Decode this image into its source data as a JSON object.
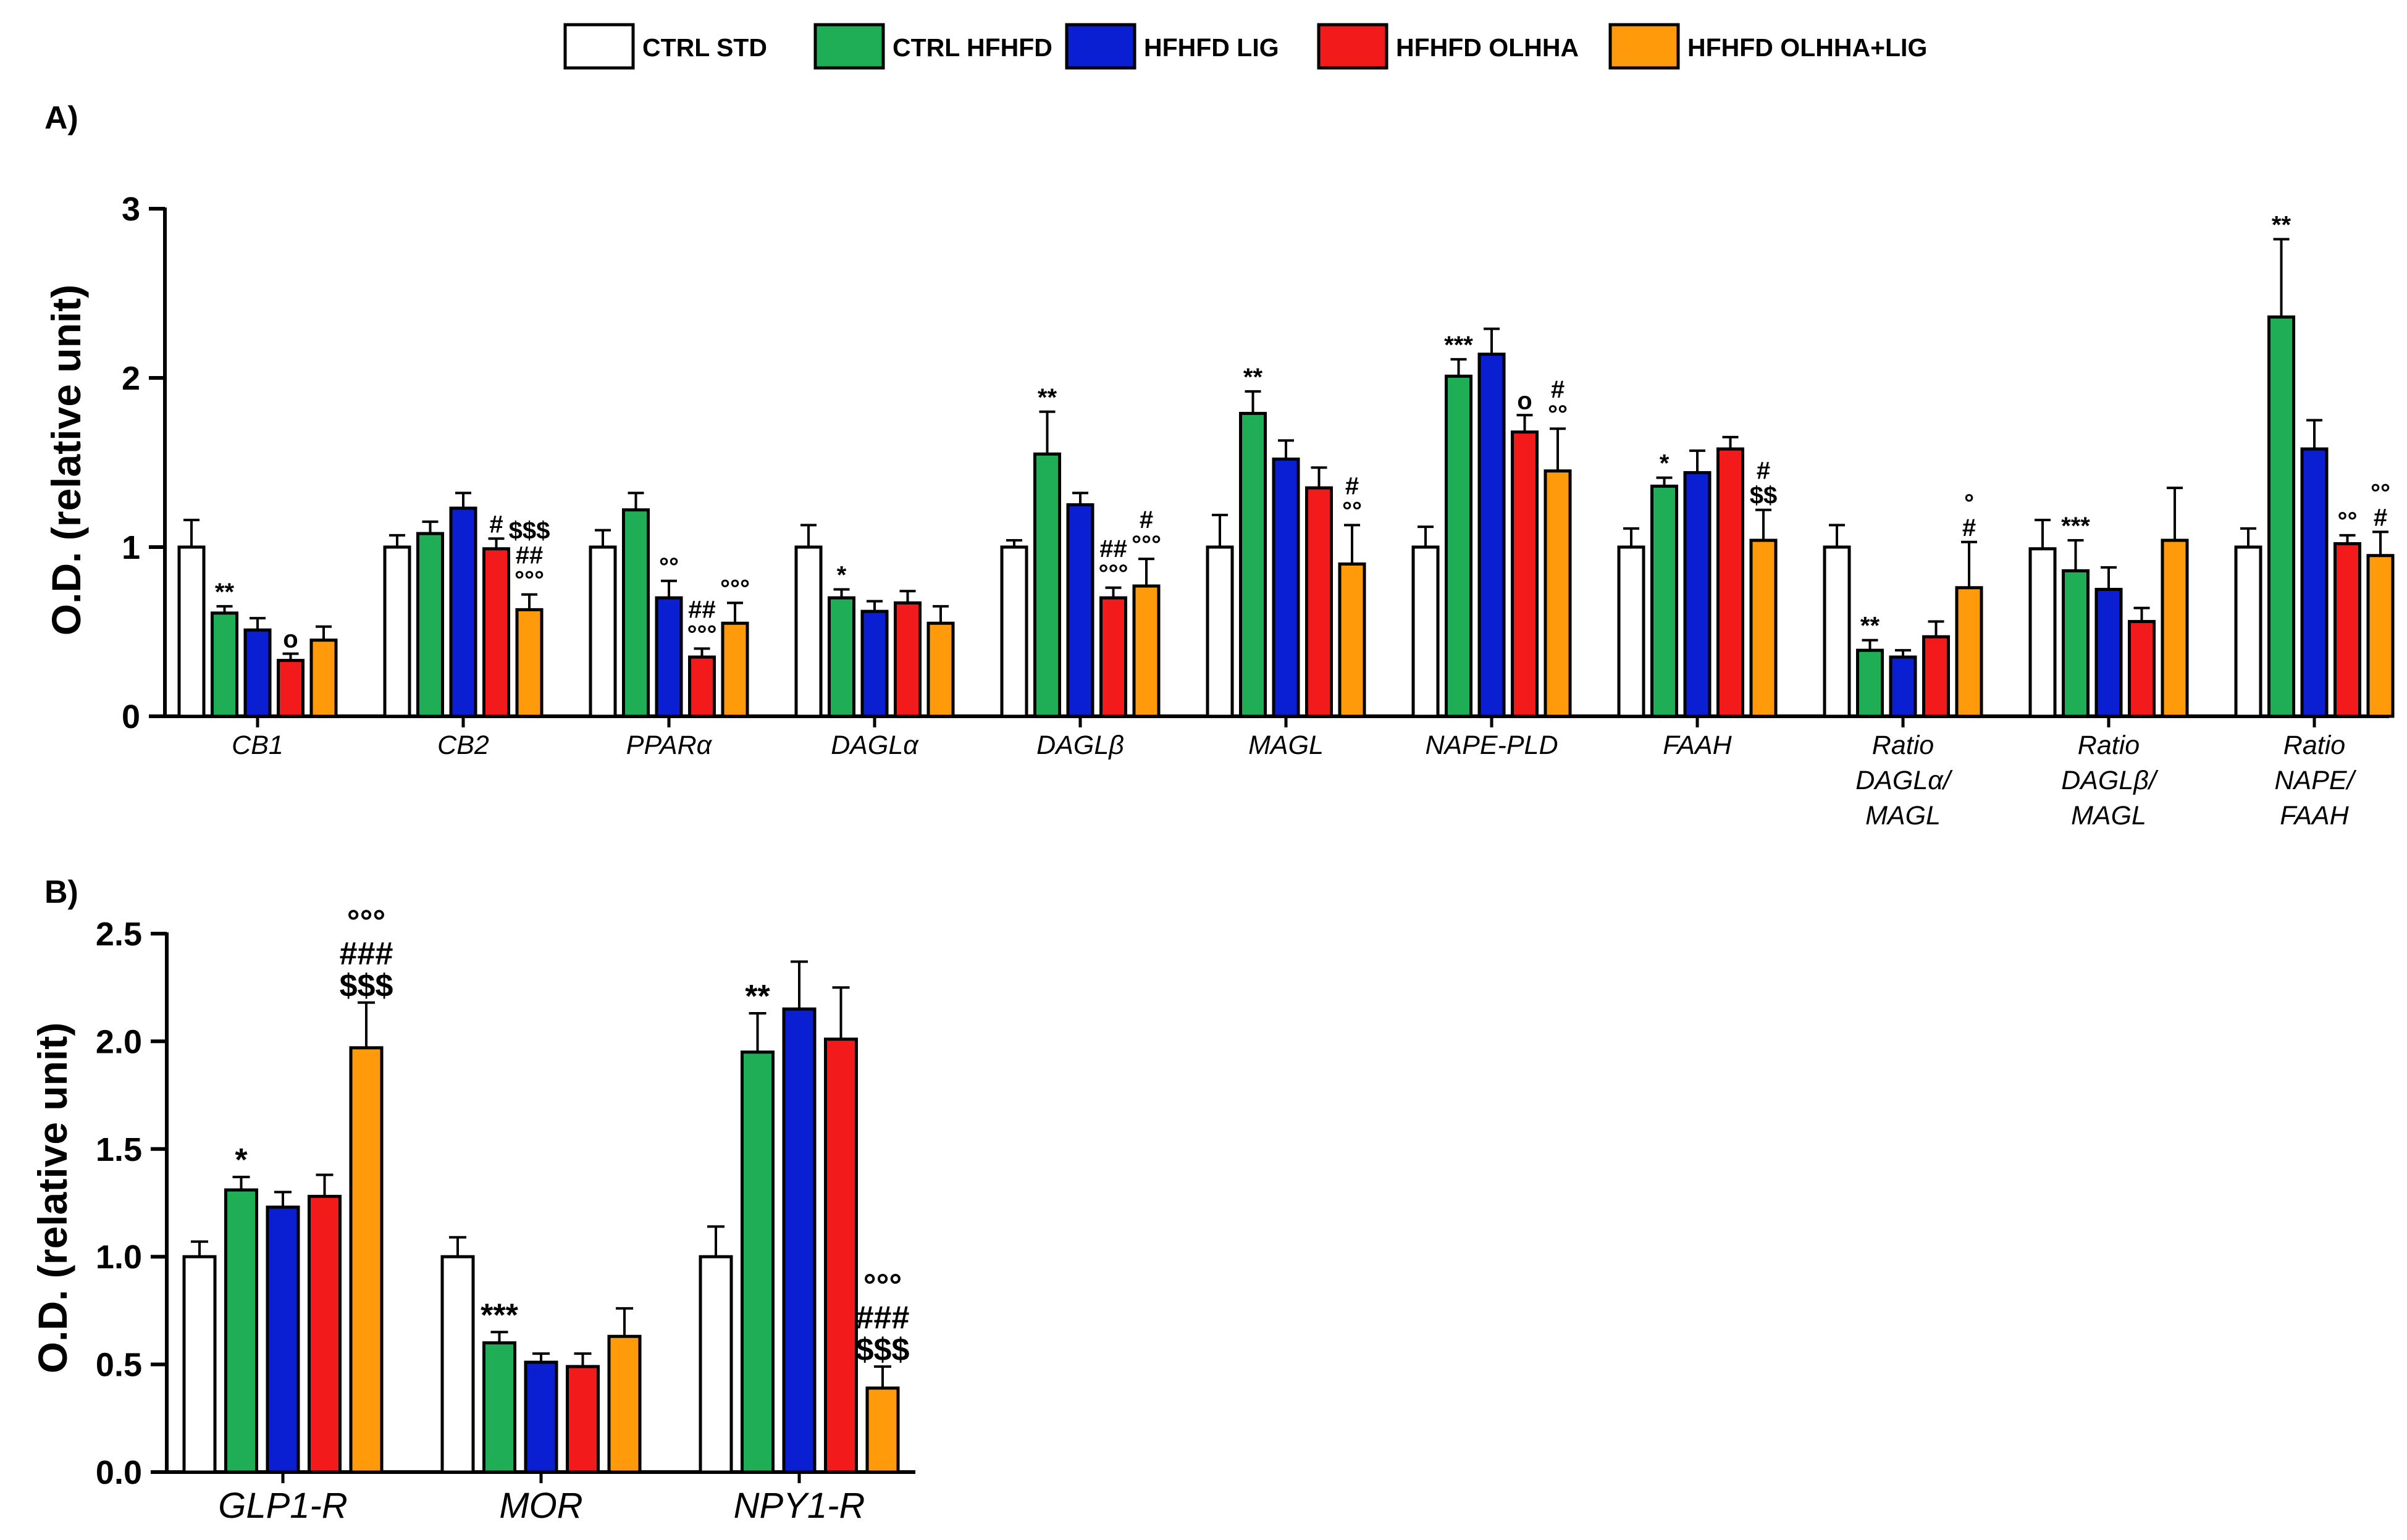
{
  "legend": [
    {
      "label": "CTRL STD",
      "color": "#ffffff"
    },
    {
      "label": "CTRL HFHFD",
      "color": "#1fad56"
    },
    {
      "label": "HFHFD LIG",
      "color": "#0a1fd1"
    },
    {
      "label": "HFHFD OLHHA",
      "color": "#f21a1a"
    },
    {
      "label": "HFHFD OLHHA+LIG",
      "color": "#ff9a0a"
    }
  ],
  "chart_data": [
    {
      "type": "bar",
      "panel_label": "A)",
      "ylabel": "O.D. (relative unit)",
      "ylim": [
        0,
        3
      ],
      "yticks": [
        "0",
        "1",
        "2",
        "3"
      ],
      "categories": [
        [
          "CB1"
        ],
        [
          "CB2"
        ],
        [
          "PPARα"
        ],
        [
          "DAGLα"
        ],
        [
          "DAGLβ"
        ],
        [
          "MAGL"
        ],
        [
          "NAPE-PLD"
        ],
        [
          "FAAH"
        ],
        [
          "Ratio",
          "DAGLα/",
          "MAGL"
        ],
        [
          "Ratio",
          "DAGLβ/",
          "MAGL"
        ],
        [
          "Ratio",
          "NAPE/",
          "FAAH"
        ]
      ],
      "series": [
        {
          "name": "CTRL STD",
          "values": [
            1.0,
            1.0,
            1.0,
            1.0,
            1.0,
            1.0,
            1.0,
            1.0,
            1.0,
            0.99,
            1.0
          ],
          "errors": [
            0.16,
            0.07,
            0.1,
            0.13,
            0.04,
            0.19,
            0.12,
            0.11,
            0.13,
            0.17,
            0.11
          ]
        },
        {
          "name": "CTRL HFHFD",
          "values": [
            0.61,
            1.08,
            1.22,
            0.7,
            1.55,
            1.79,
            2.01,
            1.36,
            0.39,
            0.86,
            2.36
          ],
          "errors": [
            0.04,
            0.07,
            0.1,
            0.05,
            0.25,
            0.13,
            0.1,
            0.05,
            0.06,
            0.18,
            0.46
          ]
        },
        {
          "name": "HFHFD LIG",
          "values": [
            0.51,
            1.23,
            0.7,
            0.62,
            1.25,
            1.52,
            2.14,
            1.44,
            0.35,
            0.75,
            1.58
          ]
        },
        {
          "name": "HFHFD OLHHA",
          "values": [
            0.33,
            0.99,
            0.35,
            0.67,
            0.7,
            1.35,
            1.68,
            1.58,
            0.47,
            0.56,
            1.02
          ]
        },
        {
          "name": "HFHFD OLHHA+LIG",
          "values": [
            0.45,
            0.63,
            0.55,
            0.55,
            0.77,
            0.9,
            1.45,
            1.04,
            0.76,
            1.04,
            0.95
          ]
        }
      ],
      "errors_lig": [
        0.07,
        0.09,
        0.1,
        0.06,
        0.07,
        0.11,
        0.15,
        0.13,
        0.04,
        0.13,
        0.17
      ],
      "errors_olhha": [
        0.04,
        0.06,
        0.05,
        0.07,
        0.06,
        0.12,
        0.1,
        0.07,
        0.09,
        0.08,
        0.05
      ],
      "errors_combo": [
        0.08,
        0.09,
        0.12,
        0.1,
        0.16,
        0.23,
        0.25,
        0.18,
        0.27,
        0.31,
        0.14
      ],
      "annotations": [
        {
          "cat": 0,
          "series": 1,
          "lines": [
            "**"
          ]
        },
        {
          "cat": 0,
          "series": 3,
          "lines": [
            "o"
          ]
        },
        {
          "cat": 1,
          "series": 3,
          "lines": [
            "#"
          ]
        },
        {
          "cat": 1,
          "series": 4,
          "lines": [
            "$$$",
            "##",
            "°°°"
          ]
        },
        {
          "cat": 2,
          "series": 2,
          "lines": [
            "°°"
          ]
        },
        {
          "cat": 2,
          "series": 3,
          "lines": [
            "##",
            "°°°"
          ]
        },
        {
          "cat": 2,
          "series": 4,
          "lines": [
            "°°°"
          ]
        },
        {
          "cat": 3,
          "series": 1,
          "lines": [
            "*"
          ]
        },
        {
          "cat": 4,
          "series": 1,
          "lines": [
            "**"
          ]
        },
        {
          "cat": 4,
          "series": 3,
          "lines": [
            "##",
            "°°°"
          ]
        },
        {
          "cat": 4,
          "series": 4,
          "lines": [
            "#",
            "°°°"
          ]
        },
        {
          "cat": 5,
          "series": 1,
          "lines": [
            "**"
          ]
        },
        {
          "cat": 5,
          "series": 4,
          "lines": [
            "#",
            "°°"
          ]
        },
        {
          "cat": 6,
          "series": 1,
          "lines": [
            "***"
          ]
        },
        {
          "cat": 6,
          "series": 3,
          "lines": [
            "o"
          ]
        },
        {
          "cat": 6,
          "series": 4,
          "lines": [
            "#",
            "°°"
          ]
        },
        {
          "cat": 7,
          "series": 1,
          "lines": [
            "*"
          ]
        },
        {
          "cat": 7,
          "series": 4,
          "lines": [
            "#",
            "$$"
          ]
        },
        {
          "cat": 8,
          "series": 1,
          "lines": [
            "**"
          ]
        },
        {
          "cat": 8,
          "series": 4,
          "lines": [
            "°",
            "#"
          ]
        },
        {
          "cat": 9,
          "series": 1,
          "lines": [
            "***"
          ]
        },
        {
          "cat": 10,
          "series": 1,
          "lines": [
            "**"
          ]
        },
        {
          "cat": 10,
          "series": 3,
          "lines": [
            "°°"
          ]
        },
        {
          "cat": 10,
          "series": 4,
          "lines": [
            "°°",
            "#"
          ]
        }
      ]
    },
    {
      "type": "bar",
      "panel_label": "B)",
      "ylabel": "O.D. (relative unit)",
      "ylim": [
        0,
        2.5
      ],
      "yticks": [
        "0.0",
        "0.5",
        "1.0",
        "1.5",
        "2.0",
        "2.5"
      ],
      "categories": [
        [
          "GLP1-R"
        ],
        [
          "MOR"
        ],
        [
          "NPY1-R"
        ]
      ],
      "series": [
        {
          "name": "CTRL STD",
          "values": [
            1.0,
            1.0,
            1.0
          ],
          "errors": [
            0.07,
            0.09,
            0.14
          ]
        },
        {
          "name": "CTRL HFHFD",
          "values": [
            1.31,
            0.6,
            1.95
          ],
          "errors": [
            0.06,
            0.05,
            0.18
          ]
        },
        {
          "name": "HFHFD LIG",
          "values": [
            1.23,
            0.51,
            2.15
          ],
          "errors": [
            0.07,
            0.04,
            0.22
          ]
        },
        {
          "name": "HFHFD OLHHA",
          "values": [
            1.28,
            0.49,
            2.01
          ],
          "errors": [
            0.1,
            0.06,
            0.24
          ]
        },
        {
          "name": "HFHFD OLHHA+LIG",
          "values": [
            1.97,
            0.63,
            0.39
          ],
          "errors": [
            0.21,
            0.13,
            0.1
          ]
        }
      ],
      "annotations": [
        {
          "cat": 0,
          "series": 1,
          "lines": [
            "*"
          ]
        },
        {
          "cat": 0,
          "series": 4,
          "lines": [
            "°°°",
            "###",
            "$$$"
          ]
        },
        {
          "cat": 1,
          "series": 1,
          "lines": [
            "***"
          ]
        },
        {
          "cat": 2,
          "series": 1,
          "lines": [
            "**"
          ]
        },
        {
          "cat": 2,
          "series": 4,
          "lines": [
            "°°°",
            "###",
            "$$$"
          ]
        }
      ]
    }
  ]
}
